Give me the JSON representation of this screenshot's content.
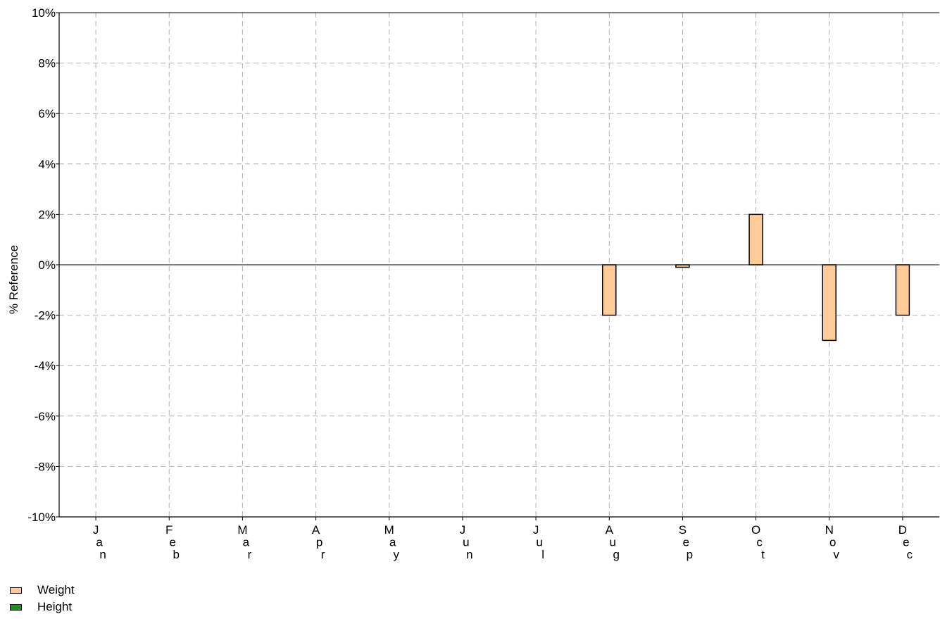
{
  "chart_data": {
    "type": "bar",
    "title": "",
    "xlabel": "",
    "ylabel": "% Reference",
    "ylim": [
      -10,
      10
    ],
    "yticks": [
      10,
      8,
      6,
      4,
      2,
      0,
      -2,
      -4,
      -6,
      -8,
      -10
    ],
    "ytick_labels": [
      "10%",
      "8%",
      "6%",
      "4%",
      "2%",
      "0%",
      "-2%",
      "-4%",
      "-6%",
      "-8%",
      "-10%"
    ],
    "categories": [
      "Jan",
      "Feb",
      "Mar",
      "Apr",
      "May",
      "Jun",
      "Jul",
      "Aug",
      "Sep",
      "Oct",
      "Nov",
      "Dec"
    ],
    "series": [
      {
        "name": "Weight",
        "color": "#ffcc99",
        "values": [
          null,
          null,
          null,
          null,
          null,
          null,
          null,
          -2,
          -0.1,
          2,
          -3,
          -2
        ]
      },
      {
        "name": "Height",
        "color": "#228b22",
        "values": [
          null,
          null,
          null,
          null,
          null,
          null,
          null,
          null,
          null,
          null,
          null,
          null
        ]
      }
    ],
    "grid": true,
    "legend_position": "bottom-left"
  }
}
